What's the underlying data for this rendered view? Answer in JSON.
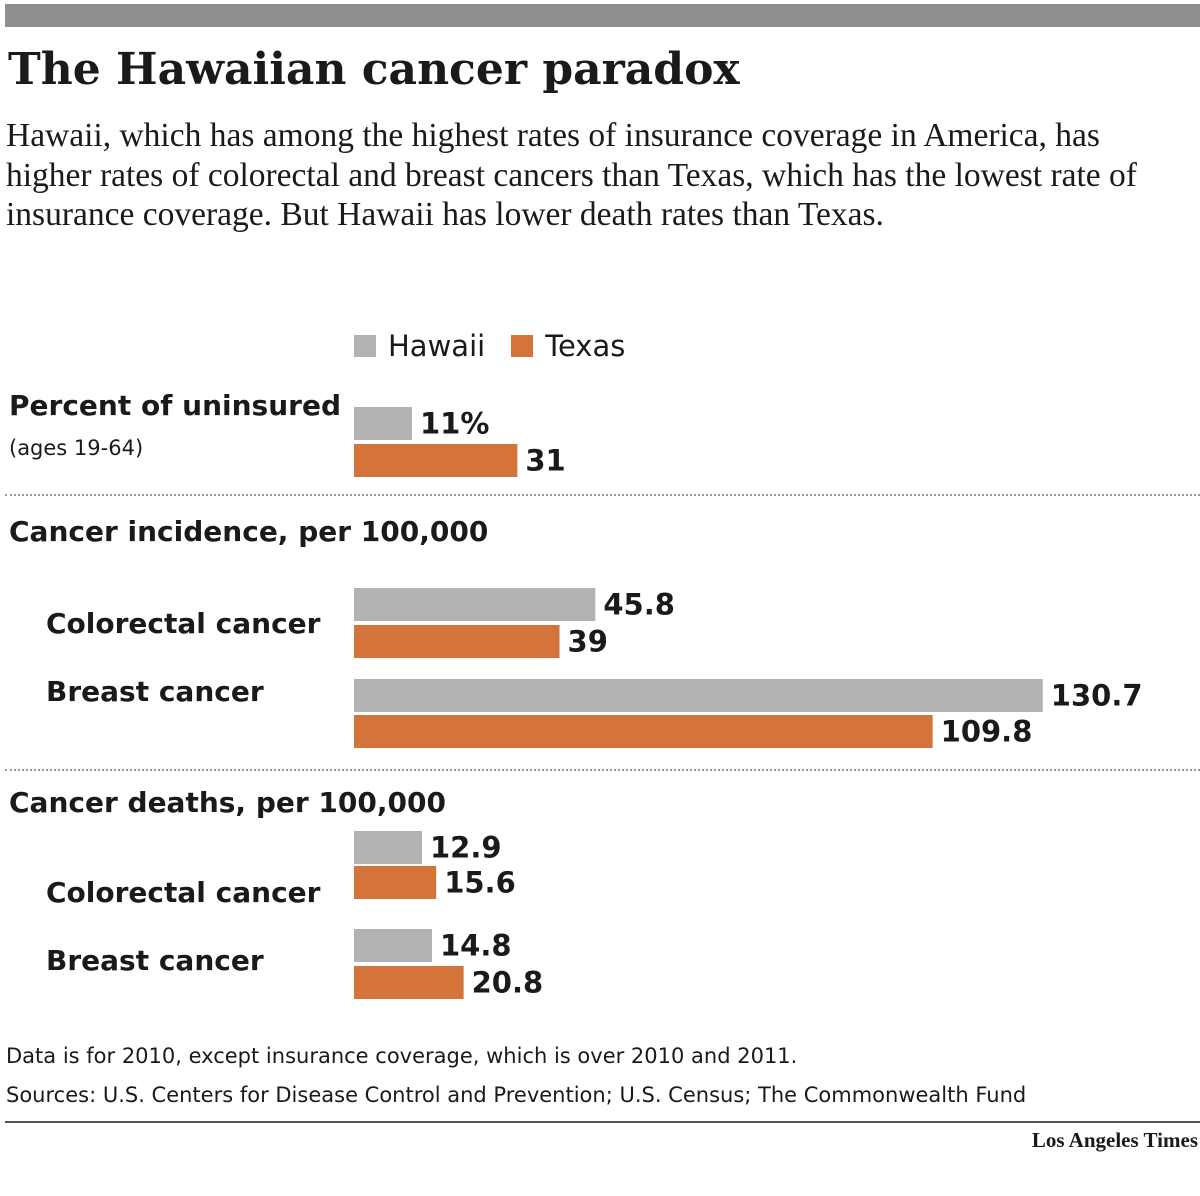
{
  "title": "The Hawaiian cancer paradox",
  "subtitle": "Hawaii, which has among the highest rates of insurance coverage in America, has higher rates of colorectal and breast cancers than Texas, which has the lowest rate of insurance coverage. But Hawaii has lower death rates than Texas.",
  "legend": [
    {
      "label": "Hawaii",
      "color": "#b3b3b5"
    },
    {
      "label": "Texas",
      "color": "#d4733a"
    }
  ],
  "groups": {
    "uninsured": {
      "title": "Percent of uninsured",
      "note": "(ages 19-64)"
    },
    "incidence": {
      "title": "Cancer incidence, per 100,000"
    },
    "deaths": {
      "title": "Cancer deaths, per 100,000"
    }
  },
  "category_labels": {
    "incidence_colorectal": "Colorectal cancer",
    "incidence_breast": "Breast cancer",
    "deaths_colorectal": "Colorectal cancer",
    "deaths_breast": "Breast cancer"
  },
  "chart_data": {
    "type": "bar",
    "orientation": "horizontal",
    "grid": false,
    "legend_position": "top",
    "series_names": [
      "Hawaii",
      "Texas"
    ],
    "colors": {
      "Hawaii": "#b3b3b5",
      "Texas": "#d4733a"
    },
    "bars": [
      {
        "group": "Percent of uninsured",
        "category": "",
        "series": "Hawaii",
        "value": 11,
        "label": "11%"
      },
      {
        "group": "Percent of uninsured",
        "category": "",
        "series": "Texas",
        "value": 31,
        "label": "31"
      },
      {
        "group": "Cancer incidence, per 100,000",
        "category": "Colorectal cancer",
        "series": "Hawaii",
        "value": 45.8,
        "label": "45.8"
      },
      {
        "group": "Cancer incidence, per 100,000",
        "category": "Colorectal cancer",
        "series": "Texas",
        "value": 39,
        "label": "39"
      },
      {
        "group": "Cancer incidence, per 100,000",
        "category": "Breast cancer",
        "series": "Hawaii",
        "value": 130.7,
        "label": "130.7"
      },
      {
        "group": "Cancer incidence, per 100,000",
        "category": "Breast cancer",
        "series": "Texas",
        "value": 109.8,
        "label": "109.8"
      },
      {
        "group": "Cancer deaths, per 100,000",
        "category": "Colorectal cancer",
        "series": "Hawaii",
        "value": 12.9,
        "label": "12.9"
      },
      {
        "group": "Cancer deaths, per 100,000",
        "category": "Colorectal cancer",
        "series": "Texas",
        "value": 15.6,
        "label": "15.6"
      },
      {
        "group": "Cancer deaths, per 100,000",
        "category": "Breast cancer",
        "series": "Hawaii",
        "value": 14.8,
        "label": "14.8"
      },
      {
        "group": "Cancer deaths, per 100,000",
        "category": "Breast cancer",
        "series": "Texas",
        "value": 20.8,
        "label": "20.8"
      }
    ]
  },
  "footnotes": [
    "Data is for 2010, except insurance coverage, which is over 2010 and 2011.",
    "Sources: U.S. Centers for Disease Control and Prevention; U.S. Census; The Commonwealth Fund"
  ],
  "credit": "Los Angeles Times"
}
